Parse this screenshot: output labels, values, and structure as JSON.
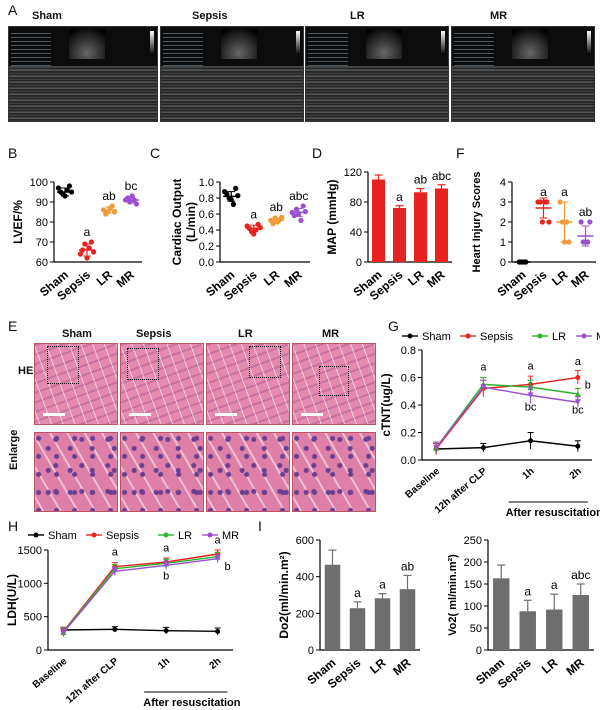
{
  "panels": {
    "A": "A",
    "B": "B",
    "C": "C",
    "D": "D",
    "E": "E",
    "F": "F",
    "G": "G",
    "H": "H",
    "I": "I"
  },
  "groups": [
    "Sham",
    "Sepsis",
    "LR",
    "MR"
  ],
  "colors": {
    "Sham": "#000000",
    "Sepsis": "#e8231f",
    "LR": "#f29a39",
    "MR": "#9a4fd1",
    "bar": "#e8231f",
    "grey": "#6e6e6e",
    "lr_line": "#2ab52a"
  },
  "histology": {
    "row1": "HE",
    "row2": "Enlarge"
  },
  "chart_data": [
    {
      "id": "B",
      "type": "scatter",
      "ylabel": "LVEF/%",
      "ylim": [
        60,
        100
      ],
      "yticks": [
        60,
        70,
        80,
        90,
        100
      ],
      "categories": [
        "Sham",
        "Sepsis",
        "LR",
        "MR"
      ],
      "points": [
        [
          97,
          95,
          94,
          93,
          96,
          98,
          95
        ],
        [
          64,
          66,
          69,
          62,
          67,
          70,
          65
        ],
        [
          86,
          84,
          85,
          87,
          88,
          85
        ],
        [
          91,
          92,
          90,
          93,
          91,
          89
        ]
      ],
      "means": [
        95,
        66,
        86,
        91
      ],
      "sd": [
        2,
        3,
        1.5,
        1.5
      ],
      "annot": [
        "",
        "a",
        "ab",
        "bc"
      ]
    },
    {
      "id": "C",
      "type": "scatter",
      "ylabel": "Cardiac Output\n(L/min)",
      "ylim": [
        0,
        1.0
      ],
      "yticks": [
        0.0,
        0.2,
        0.4,
        0.6,
        0.8,
        1.0
      ],
      "categories": [
        "Sham",
        "Sepsis",
        "LR",
        "MR"
      ],
      "points": [
        [
          0.88,
          0.85,
          0.8,
          0.78,
          0.72,
          0.92,
          0.83
        ],
        [
          0.45,
          0.42,
          0.38,
          0.35,
          0.4,
          0.47,
          0.43
        ],
        [
          0.52,
          0.48,
          0.55,
          0.5,
          0.53,
          0.56
        ],
        [
          0.62,
          0.58,
          0.66,
          0.6,
          0.52,
          0.7,
          0.63
        ]
      ],
      "means": [
        0.82,
        0.42,
        0.52,
        0.62
      ],
      "sd": [
        0.06,
        0.04,
        0.03,
        0.05
      ],
      "annot": [
        "",
        "a",
        "ab",
        "abc"
      ]
    },
    {
      "id": "D",
      "type": "bar",
      "ylabel": "MAP (mmHg)",
      "ylim": [
        0,
        120
      ],
      "yticks": [
        0,
        40,
        80,
        120
      ],
      "categories": [
        "Sham",
        "Sepsis",
        "LR",
        "MR"
      ],
      "values": [
        110,
        72,
        93,
        98
      ],
      "errors": [
        6,
        3,
        5,
        5
      ],
      "annot": [
        "",
        "a",
        "ab",
        "abc"
      ]
    },
    {
      "id": "F",
      "type": "scatter",
      "ylabel": "Heart Injury Scores",
      "ylim": [
        0,
        4
      ],
      "yticks": [
        0,
        1,
        2,
        3,
        4
      ],
      "categories": [
        "Sham",
        "Sepsis",
        "LR",
        "MR"
      ],
      "points": [
        [
          0,
          0,
          0,
          0
        ],
        [
          3,
          3,
          2,
          3,
          3,
          2
        ],
        [
          3,
          2,
          1,
          2,
          1
        ],
        [
          2,
          1,
          1,
          1,
          2
        ]
      ],
      "means": [
        0,
        2.7,
        2.0,
        1.3
      ],
      "sd": [
        0,
        0.5,
        1.0,
        0.5
      ],
      "annot": [
        "",
        "a",
        "a",
        "ab"
      ]
    },
    {
      "id": "G",
      "type": "line",
      "ylabel": "cTNT(ug/L)",
      "ylim": [
        0,
        0.8
      ],
      "yticks": [
        0.0,
        0.2,
        0.4,
        0.6,
        0.8
      ],
      "x": [
        "Baseline",
        "12h after CLP",
        "1h",
        "2h"
      ],
      "xgroup_label": "After resuscitation",
      "series": [
        {
          "name": "Sham",
          "values": [
            0.08,
            0.09,
            0.14,
            0.1
          ],
          "errors": [
            0.04,
            0.03,
            0.06,
            0.04
          ]
        },
        {
          "name": "Sepsis",
          "values": [
            0.08,
            0.52,
            0.55,
            0.6
          ],
          "errors": [
            0.04,
            0.06,
            0.06,
            0.05
          ]
        },
        {
          "name": "LR",
          "values": [
            0.09,
            0.55,
            0.53,
            0.48
          ],
          "errors": [
            0.04,
            0.05,
            0.05,
            0.04
          ]
        },
        {
          "name": "MR",
          "values": [
            0.09,
            0.53,
            0.47,
            0.42
          ],
          "errors": [
            0.04,
            0.05,
            0.06,
            0.04
          ]
        }
      ],
      "annot": [
        {
          "x": 1,
          "text": "a",
          "y": 0.65
        },
        {
          "x": 2,
          "text": "a",
          "y": 0.66
        },
        {
          "x": 2,
          "text": "bc",
          "y": 0.36
        },
        {
          "x": 3,
          "text": "a",
          "y": 0.69
        },
        {
          "x": 3,
          "text": "b",
          "y": 0.52
        },
        {
          "x": 3,
          "text": "bc",
          "y": 0.34
        }
      ]
    },
    {
      "id": "H",
      "type": "line",
      "ylabel": "LDH(U/L)",
      "ylim": [
        0,
        1500
      ],
      "yticks": [
        0,
        500,
        1000,
        1500
      ],
      "x": [
        "Baseline",
        "12h after CLP",
        "1h",
        "2h"
      ],
      "xgroup_label": "After resuscitation",
      "series": [
        {
          "name": "Sham",
          "values": [
            300,
            310,
            290,
            280
          ],
          "errors": [
            40,
            40,
            50,
            50
          ]
        },
        {
          "name": "Sepsis",
          "values": [
            280,
            1250,
            1320,
            1440
          ],
          "errors": [
            60,
            60,
            60,
            60
          ]
        },
        {
          "name": "LR",
          "values": [
            270,
            1220,
            1300,
            1400
          ],
          "errors": [
            60,
            60,
            60,
            60
          ]
        },
        {
          "name": "MR",
          "values": [
            260,
            1180,
            1270,
            1370
          ],
          "errors": [
            60,
            60,
            60,
            60
          ]
        }
      ],
      "annot": [
        {
          "x": 1,
          "text": "a",
          "y": 1420
        },
        {
          "x": 2,
          "text": "a",
          "y": 1480
        },
        {
          "x": 2,
          "text": "b",
          "y": 1060
        },
        {
          "x": 3,
          "text": "a",
          "y": 1600
        },
        {
          "x": 3,
          "text": "b",
          "y": 1200
        }
      ]
    },
    {
      "id": "I1",
      "type": "bar",
      "ylabel": "Do2(ml/min.m²)",
      "ylim": [
        0,
        600
      ],
      "yticks": [
        0,
        200,
        400,
        600
      ],
      "categories": [
        "Sham",
        "Sepsis",
        "LR",
        "MR"
      ],
      "values": [
        465,
        228,
        282,
        332
      ],
      "errors": [
        80,
        35,
        25,
        75
      ],
      "annot": [
        "",
        "a",
        "a",
        "ab"
      ]
    },
    {
      "id": "I2",
      "type": "bar",
      "ylabel": "Vo2( ml/min.m²)",
      "ylim": [
        0,
        250
      ],
      "yticks": [
        0,
        50,
        100,
        150,
        200,
        250
      ],
      "categories": [
        "Sham",
        "Sepsis",
        "LR",
        "MR"
      ],
      "values": [
        163,
        88,
        92,
        125
      ],
      "errors": [
        30,
        25,
        35,
        25
      ],
      "annot": [
        "",
        "a",
        "a",
        "abc"
      ]
    }
  ]
}
